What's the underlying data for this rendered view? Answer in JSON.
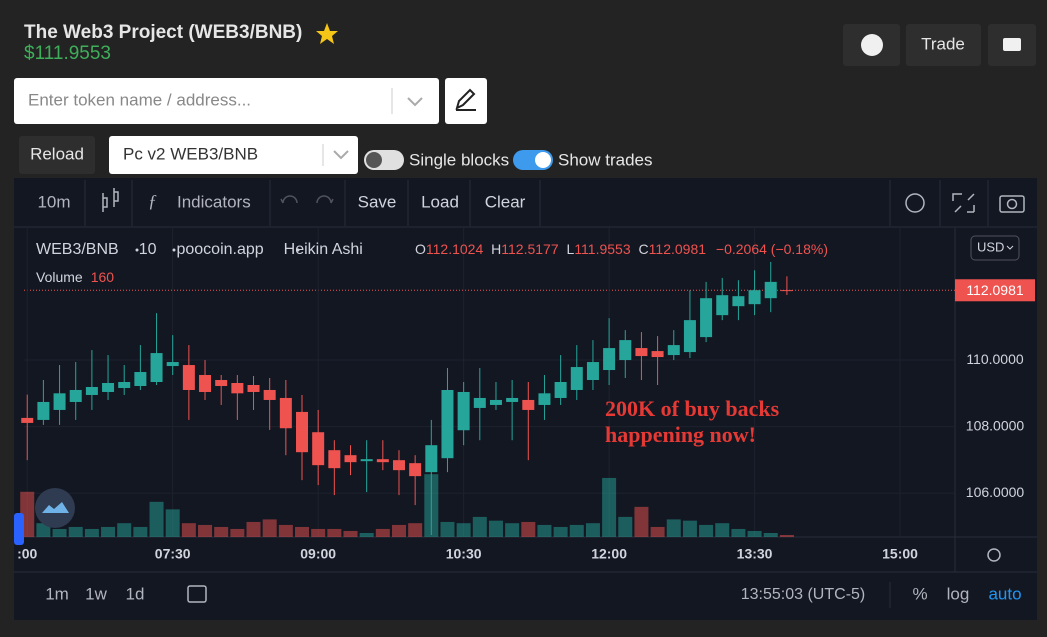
{
  "header": {
    "title": "The Web3 Project (WEB3/BNB)",
    "price": "$111.9553",
    "trade_button": "Trade"
  },
  "search": {
    "placeholder": "Enter token name / address..."
  },
  "controls": {
    "reload": "Reload",
    "pair_select": "Pc v2 WEB3/BNB",
    "single_blocks": "Single blocks",
    "show_trades": "Show trades"
  },
  "toolbar": {
    "interval": "10m",
    "indicators": "Indicators",
    "save": "Save",
    "load": "Load",
    "clear": "Clear"
  },
  "legend": {
    "symbol": "WEB3/BNB",
    "interval": "10",
    "source": "poocoin.app",
    "style": "Heikin Ashi",
    "open_label": "O",
    "high_label": "H",
    "low_label": "L",
    "close_label": "C",
    "change": "−0.2064 (−0.18%)",
    "volume_label": "Volume",
    "currency": "USD"
  },
  "footer": {
    "ranges": [
      "1m",
      "1w",
      "1d"
    ],
    "clock": "13:55:03 (UTC-5)",
    "percent": "%",
    "log": "log",
    "auto": "auto"
  },
  "chart_data": {
    "type": "candlestick",
    "x": [
      "06:00",
      "06:10",
      "06:20",
      "06:30",
      "06:40",
      "06:50",
      "07:00",
      "07:10",
      "07:20",
      "07:30",
      "07:40",
      "07:50",
      "08:00",
      "08:10",
      "08:20",
      "08:30",
      "08:40",
      "08:50",
      "09:00",
      "09:10",
      "09:20",
      "09:30",
      "09:40",
      "09:50",
      "10:00",
      "10:10",
      "10:20",
      "10:30",
      "10:40",
      "10:50",
      "11:00",
      "11:10",
      "11:20",
      "11:30",
      "11:40",
      "11:50",
      "12:00",
      "12:10",
      "12:20",
      "12:30",
      "12:40",
      "12:50",
      "13:00",
      "13:10",
      "13:20",
      "13:30",
      "13:40",
      "13:50"
    ],
    "open": [
      108.26,
      108.2,
      108.5,
      108.74,
      108.95,
      109.04,
      109.16,
      109.22,
      109.34,
      109.82,
      109.85,
      109.55,
      109.4,
      109.31,
      109.25,
      109.1,
      108.86,
      108.44,
      107.83,
      107.29,
      107.14,
      106.96,
      107.02,
      106.99,
      106.9,
      106.63,
      107.05,
      107.89,
      108.56,
      108.65,
      108.74,
      108.8,
      108.65,
      108.86,
      109.1,
      109.4,
      109.7,
      110.0,
      110.36,
      110.27,
      110.15,
      110.24,
      110.69,
      111.35,
      111.62,
      111.68,
      111.86,
      112.1024
    ],
    "high": [
      108.96,
      109.4,
      109.85,
      109.94,
      110.3,
      110.15,
      109.85,
      110.45,
      111.41,
      110.75,
      110.45,
      110.0,
      109.55,
      109.55,
      109.52,
      109.46,
      109.4,
      108.95,
      108.5,
      107.59,
      107.44,
      107.59,
      107.59,
      107.29,
      107.14,
      108.2,
      109.76,
      109.34,
      109.76,
      109.34,
      109.4,
      109.34,
      109.55,
      110.15,
      110.45,
      110.6,
      111.26,
      110.9,
      110.84,
      110.72,
      110.9,
      112.1,
      112.35,
      112.47,
      112.4,
      112.7,
      112.95,
      112.5177
    ],
    "low": [
      106.99,
      108.05,
      108.05,
      108.2,
      108.5,
      108.8,
      108.95,
      109.1,
      109.25,
      109.55,
      108.2,
      108.8,
      108.65,
      108.2,
      108.5,
      107.9,
      107.14,
      106.39,
      106.24,
      105.94,
      106.54,
      106.03,
      106.69,
      105.94,
      105.64,
      104.74,
      106.63,
      107.44,
      107.59,
      108.5,
      107.59,
      106.99,
      108.2,
      108.65,
      108.8,
      109.1,
      109.25,
      109.46,
      109.4,
      109.25,
      110.0,
      110.06,
      110.54,
      111.2,
      111.2,
      111.35,
      111.44,
      111.9553
    ],
    "close": [
      108.11,
      108.74,
      109.0,
      109.1,
      109.19,
      109.31,
      109.34,
      109.64,
      110.21,
      109.94,
      109.1,
      109.04,
      109.22,
      109.0,
      109.04,
      108.8,
      107.95,
      107.23,
      106.84,
      106.75,
      106.93,
      107.02,
      106.93,
      106.69,
      106.51,
      107.44,
      109.1,
      109.04,
      108.86,
      108.8,
      108.86,
      108.5,
      109.0,
      109.34,
      109.79,
      109.94,
      110.36,
      110.6,
      110.12,
      110.09,
      110.45,
      111.2,
      111.86,
      111.95,
      111.92,
      112.1,
      112.35,
      112.0981
    ],
    "volume": [
      3600,
      1100,
      640,
      800,
      640,
      800,
      1100,
      800,
      2800,
      2200,
      1100,
      960,
      800,
      640,
      1200,
      1400,
      960,
      800,
      640,
      640,
      480,
      320,
      640,
      960,
      1100,
      5000,
      1200,
      1100,
      1600,
      1300,
      1100,
      1200,
      960,
      800,
      960,
      1100,
      4700,
      1600,
      2400,
      800,
      1400,
      1300,
      960,
      1100,
      640,
      480,
      320,
      160
    ],
    "volume_lim": [
      0,
      24600
    ],
    "xlim": [
      "05:58",
      "15:34"
    ],
    "xticks": [
      {
        "value": "06:00",
        "label": ":00"
      },
      "07:30",
      "09:00",
      "10:30",
      "12:00",
      "13:30",
      "15:00"
    ],
    "ylim": [
      104.68,
      113.97
    ],
    "yticks": [
      {
        "value": 106,
        "label": "106.0000"
      },
      {
        "value": 108,
        "label": "108.0000"
      },
      {
        "value": 110,
        "label": "110.0000"
      },
      {
        "value": 112.0981,
        "label": "112.0981"
      }
    ],
    "up_color": "#26a69a",
    "down_color": "#ef5350",
    "grid": true,
    "annotation": [
      "200K of buy backs",
      "happening now!"
    ]
  }
}
